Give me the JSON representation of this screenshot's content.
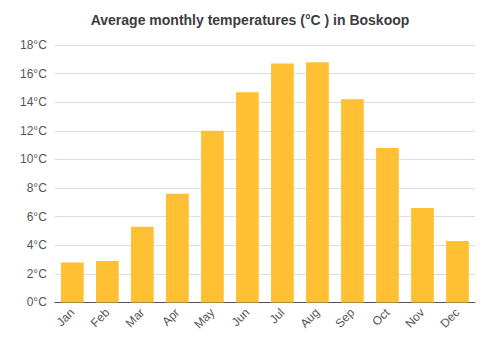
{
  "chart_data": {
    "type": "bar",
    "title": "Average monthly temperatures (°C ) in Boskoop",
    "categories": [
      "Jan",
      "Feb",
      "Mar",
      "Apr",
      "May",
      "Jun",
      "Jul",
      "Aug",
      "Sep",
      "Oct",
      "Nov",
      "Dec"
    ],
    "values": [
      2.8,
      2.9,
      5.3,
      7.6,
      12.0,
      14.7,
      16.7,
      16.8,
      14.2,
      10.8,
      6.6,
      4.3
    ],
    "color": "#FFC133",
    "ylim": [
      0,
      18
    ],
    "yticks": [
      {
        "value": 0,
        "label": "0°C"
      },
      {
        "value": 2,
        "label": "2°C"
      },
      {
        "value": 4,
        "label": "4°C"
      },
      {
        "value": 6,
        "label": "6°C"
      },
      {
        "value": 8,
        "label": "8°C"
      },
      {
        "value": 10,
        "label": "10°C"
      },
      {
        "value": 12,
        "label": "12°C"
      },
      {
        "value": 14,
        "label": "14°C"
      },
      {
        "value": 16,
        "label": "16°C"
      },
      {
        "value": 18,
        "label": "18°C"
      }
    ],
    "grid": true
  }
}
